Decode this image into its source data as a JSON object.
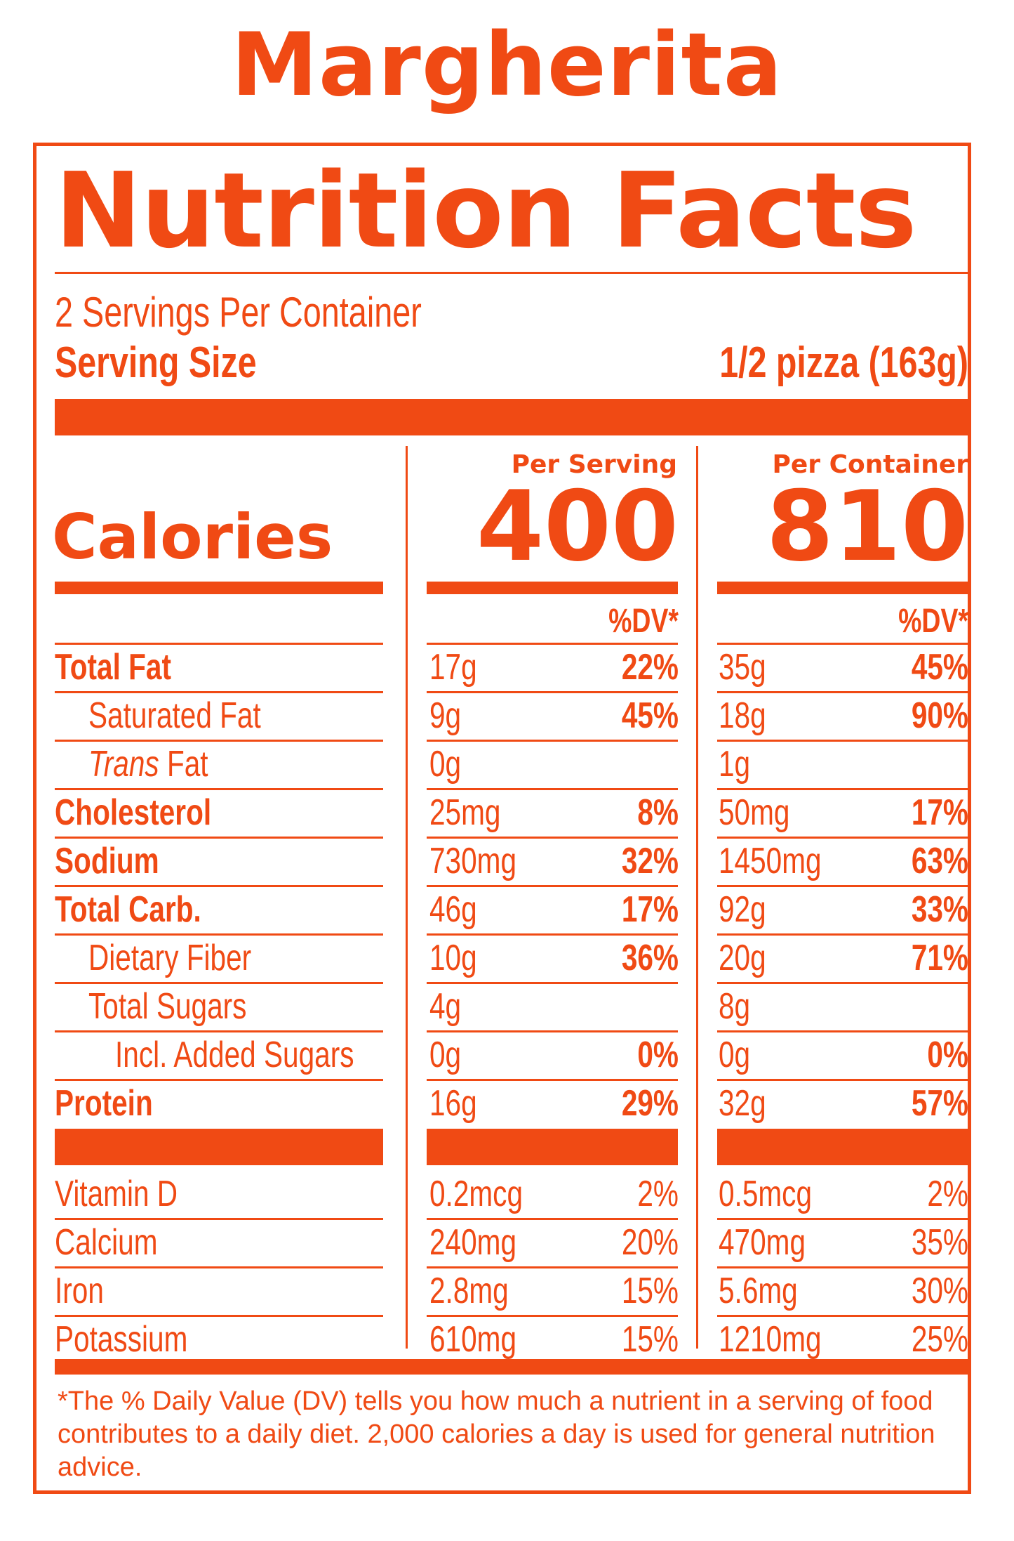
{
  "product_name": "Margherita",
  "heading": "Nutrition Facts",
  "servings_per_container": "2 Servings Per Container",
  "serving_size_label": "Serving Size",
  "serving_size_value": "1/2 pizza (163g)",
  "calories_label": "Calories",
  "per_serving_header": "Per Serving",
  "per_container_header": "Per Container",
  "calories_per_serving": "400",
  "calories_per_container": "810",
  "dv_header": "%DV*",
  "nutrients": [
    {
      "name": "Total Fat",
      "bold": true,
      "indent": 0,
      "serving_amount": "17g",
      "serving_dv": "22%",
      "container_amount": "35g",
      "container_dv": "45%"
    },
    {
      "name": "Saturated Fat",
      "bold": false,
      "indent": 1,
      "serving_amount": "9g",
      "serving_dv": "45%",
      "container_amount": "18g",
      "container_dv": "90%"
    },
    {
      "name_italic": "Trans",
      "name": " Fat",
      "bold": false,
      "indent": 1,
      "serving_amount": "0g",
      "serving_dv": "",
      "container_amount": "1g",
      "container_dv": ""
    },
    {
      "name": "Cholesterol",
      "bold": true,
      "indent": 0,
      "serving_amount": "25mg",
      "serving_dv": "8%",
      "container_amount": "50mg",
      "container_dv": "17%"
    },
    {
      "name": "Sodium",
      "bold": true,
      "indent": 0,
      "serving_amount": "730mg",
      "serving_dv": "32%",
      "container_amount": "1450mg",
      "container_dv": "63%"
    },
    {
      "name": "Total Carb.",
      "bold": true,
      "indent": 0,
      "serving_amount": "46g",
      "serving_dv": "17%",
      "container_amount": "92g",
      "container_dv": "33%"
    },
    {
      "name": "Dietary Fiber",
      "bold": false,
      "indent": 1,
      "serving_amount": "10g",
      "serving_dv": "36%",
      "container_amount": "20g",
      "container_dv": "71%"
    },
    {
      "name": "Total Sugars",
      "bold": false,
      "indent": 1,
      "serving_amount": "4g",
      "serving_dv": "",
      "container_amount": "8g",
      "container_dv": ""
    },
    {
      "name": "Incl. Added Sugars",
      "bold": false,
      "indent": 2,
      "serving_amount": "0g",
      "serving_dv": "0%",
      "container_amount": "0g",
      "container_dv": "0%"
    },
    {
      "name": "Protein",
      "bold": true,
      "indent": 0,
      "serving_amount": "16g",
      "serving_dv": "29%",
      "container_amount": "32g",
      "container_dv": "57%"
    }
  ],
  "vitamins": [
    {
      "name": "Vitamin D",
      "serving_amount": "0.2mcg",
      "serving_dv": "2%",
      "container_amount": "0.5mcg",
      "container_dv": "2%"
    },
    {
      "name": "Calcium",
      "serving_amount": "240mg",
      "serving_dv": "20%",
      "container_amount": "470mg",
      "container_dv": "35%"
    },
    {
      "name": "Iron",
      "serving_amount": "2.8mg",
      "serving_dv": "15%",
      "container_amount": "5.6mg",
      "container_dv": "30%"
    },
    {
      "name": "Potassium",
      "serving_amount": "610mg",
      "serving_dv": "15%",
      "container_amount": "1210mg",
      "container_dv": "25%"
    }
  ],
  "footnote": "*The % Daily Value (DV) tells you how much a nutrient in a serving of food contributes to a daily diet. 2,000 calories a day is used for general nutrition advice.",
  "accent_color": "#f04a14"
}
